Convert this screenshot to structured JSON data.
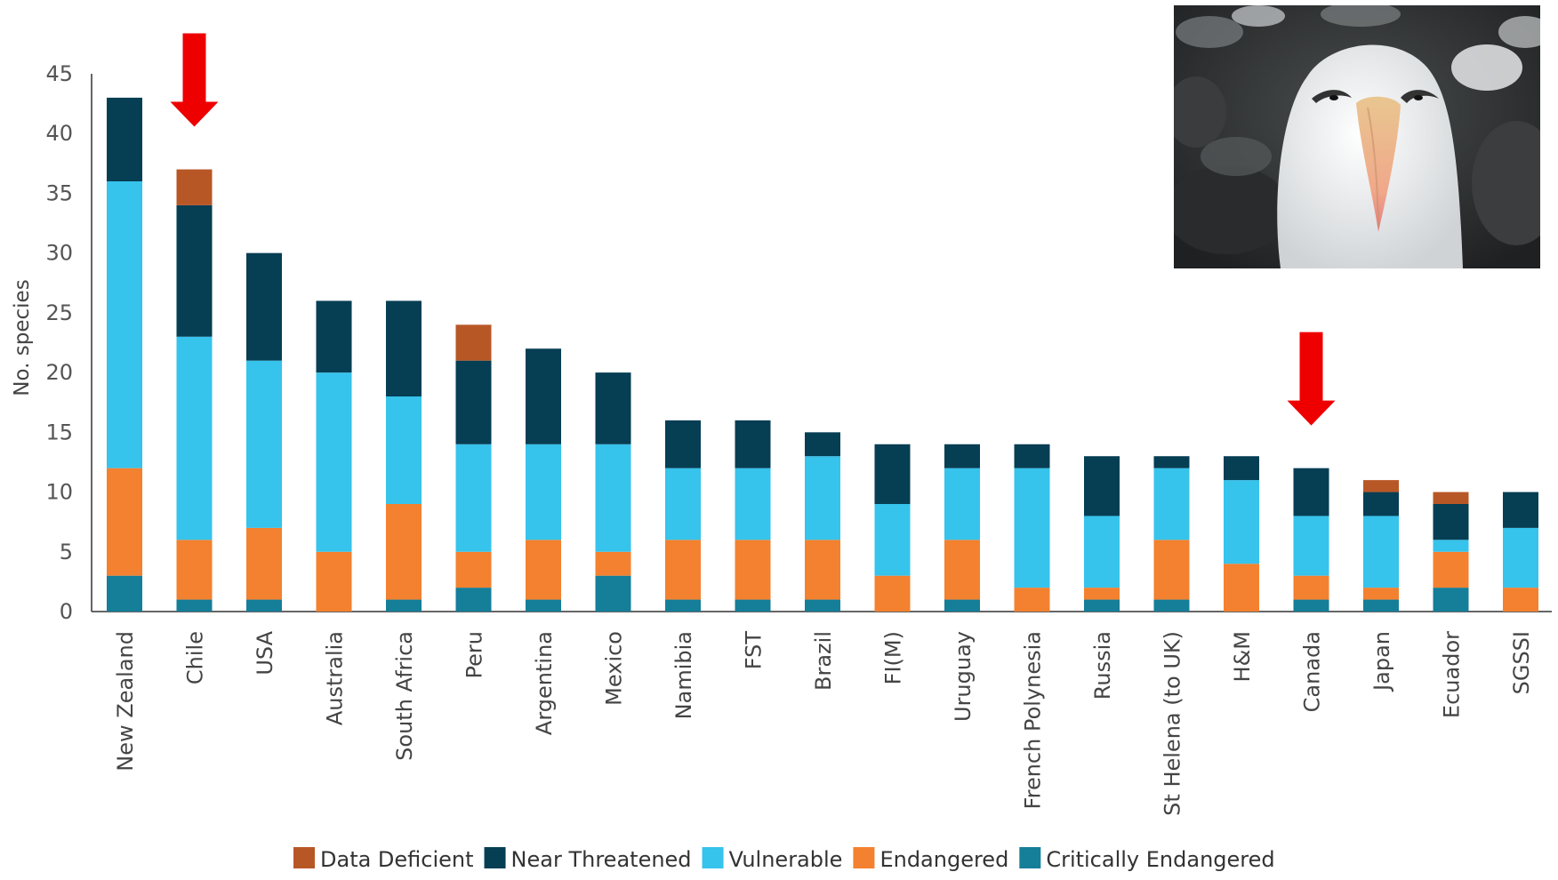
{
  "chart_data": {
    "type": "bar",
    "stacked": true,
    "ylabel": "No. species",
    "ylim": [
      0,
      45
    ],
    "yticks": [
      0,
      5,
      10,
      15,
      20,
      25,
      30,
      35,
      40,
      45
    ],
    "grid": false,
    "legend_position": "bottom-center",
    "categories": [
      "New Zealand",
      "Chile",
      "USA",
      "Australia",
      "South Africa",
      "Peru",
      "Argentina",
      "Mexico",
      "Namibia",
      "FST",
      "Brazil",
      "FI(M)",
      "Uruguay",
      "French Polynesia",
      "Russia",
      "St Helena (to UK)",
      "H&M",
      "Canada",
      "Japan",
      "Ecuador",
      "SGSSI"
    ],
    "series": [
      {
        "name": "Critically Endangered",
        "color": "#157e99",
        "values": [
          3,
          1,
          1,
          0,
          1,
          2,
          1,
          3,
          1,
          1,
          1,
          0,
          1,
          0,
          1,
          1,
          0,
          1,
          1,
          2,
          0
        ]
      },
      {
        "name": "Endangered",
        "color": "#f3812f",
        "values": [
          9,
          5,
          6,
          5,
          8,
          3,
          5,
          2,
          5,
          5,
          5,
          3,
          5,
          2,
          1,
          5,
          4,
          2,
          1,
          3,
          2
        ]
      },
      {
        "name": "Vulnerable",
        "color": "#36c3ec",
        "values": [
          24,
          17,
          14,
          15,
          9,
          9,
          8,
          9,
          6,
          6,
          7,
          6,
          6,
          10,
          6,
          6,
          7,
          5,
          6,
          1,
          5
        ]
      },
      {
        "name": "Near Threatened",
        "color": "#063e54",
        "values": [
          7,
          11,
          9,
          6,
          8,
          7,
          8,
          6,
          4,
          4,
          2,
          5,
          2,
          2,
          5,
          1,
          2,
          4,
          2,
          3,
          3
        ]
      },
      {
        "name": "Data Deficient",
        "color": "#b85726",
        "values": [
          0,
          3,
          0,
          0,
          0,
          3,
          0,
          0,
          0,
          0,
          0,
          0,
          0,
          0,
          0,
          0,
          0,
          0,
          1,
          1,
          0
        ]
      }
    ],
    "legend_order": [
      "Data Deficient",
      "Near Threatened",
      "Vulnerable",
      "Endangered",
      "Critically Endangered"
    ],
    "annotations": [
      {
        "type": "arrow",
        "category": "Chile",
        "color": "#ee0000"
      },
      {
        "type": "arrow",
        "category": "Canada",
        "color": "#ee0000"
      }
    ]
  },
  "photo": {
    "subject": "albatross-photo"
  }
}
